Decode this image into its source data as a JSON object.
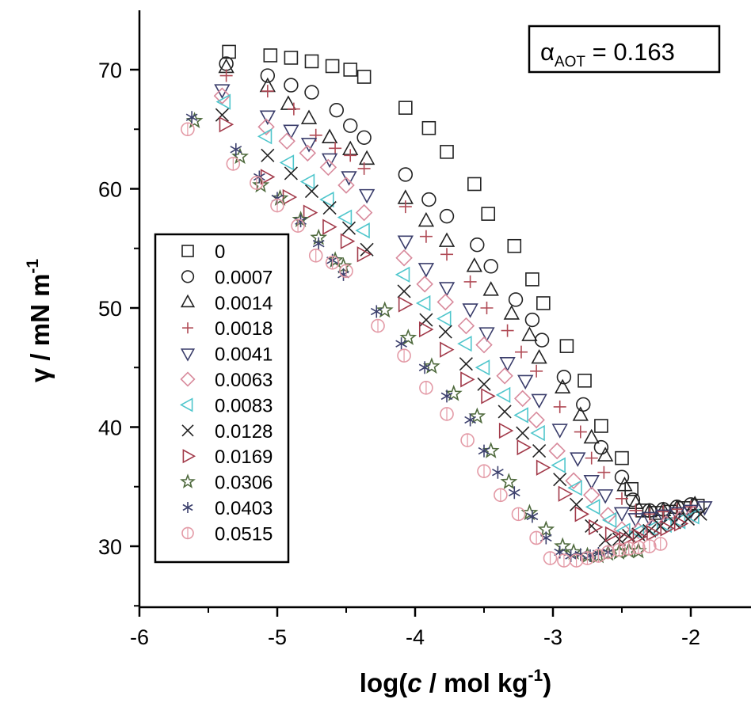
{
  "chart_data": {
    "type": "scatter",
    "xlabel": {
      "pre": "log(",
      "italic": "c",
      "post": " / mol kg",
      "sup": "-1",
      "close": ")"
    },
    "ylabel": {
      "main": "γ / mN m",
      "sup": "-1"
    },
    "xlim": [
      -6,
      -1.85
    ],
    "ylim": [
      25,
      75
    ],
    "xticks": [
      -6,
      -5,
      -4,
      -3,
      -2
    ],
    "xtick_labels": [
      "-6",
      "-5",
      "-4",
      "-3",
      "-2"
    ],
    "yticks": [
      30,
      40,
      50,
      60,
      70
    ],
    "ytick_labels": [
      "30",
      "40",
      "50",
      "60",
      "70"
    ],
    "grid": false,
    "legend_position": "center-left",
    "inset_label": {
      "symbol": "α",
      "sub": "AOT",
      "rest": " = 0.163"
    },
    "series": [
      {
        "name": "0",
        "marker": "square",
        "color": "#222222",
        "x": [
          -5.35,
          -5.05,
          -4.9,
          -4.75,
          -4.6,
          -4.47,
          -4.37,
          -4.07,
          -3.9,
          -3.77,
          -3.57,
          -3.47,
          -3.28,
          -3.15,
          -3.07,
          -2.9,
          -2.77,
          -2.65,
          -2.5,
          -2.43,
          -2.35,
          -2.25,
          -2.15,
          -2.05,
          -1.95
        ],
        "y": [
          71.5,
          71.2,
          71.0,
          70.7,
          70.3,
          70.0,
          69.4,
          66.8,
          65.1,
          63.1,
          60.4,
          57.9,
          55.2,
          52.4,
          50.4,
          46.8,
          43.9,
          40.1,
          37.4,
          34.8,
          33.0,
          32.8,
          32.9,
          33.2,
          33.4
        ]
      },
      {
        "name": "0.0007",
        "marker": "circle",
        "color": "#222222",
        "x": [
          -5.37,
          -5.07,
          -4.9,
          -4.75,
          -4.57,
          -4.47,
          -4.37,
          -4.07,
          -3.9,
          -3.77,
          -3.55,
          -3.45,
          -3.27,
          -3.15,
          -3.08,
          -2.92,
          -2.78,
          -2.65,
          -2.5,
          -2.42,
          -2.3,
          -2.2,
          -2.1,
          -2.0
        ],
        "y": [
          70.5,
          69.5,
          68.7,
          68.1,
          66.6,
          65.3,
          64.3,
          61.2,
          59.1,
          57.7,
          55.3,
          53.5,
          50.7,
          49.0,
          47.3,
          44.2,
          41.9,
          38.3,
          35.8,
          33.9,
          33.0,
          33.1,
          33.3,
          33.5
        ]
      },
      {
        "name": "0.0014",
        "marker": "triangle-up",
        "color": "#222222",
        "x": [
          -5.37,
          -5.07,
          -4.92,
          -4.77,
          -4.62,
          -4.47,
          -4.35,
          -4.07,
          -3.92,
          -3.77,
          -3.57,
          -3.45,
          -3.3,
          -3.17,
          -3.1,
          -2.93,
          -2.8,
          -2.72,
          -2.62,
          -2.48,
          -2.4,
          -2.3,
          -2.2,
          -2.1,
          -1.97
        ],
        "y": [
          70.2,
          68.6,
          67.1,
          65.9,
          64.3,
          63.3,
          62.5,
          59.2,
          57.3,
          55.6,
          53.5,
          51.5,
          49.5,
          47.7,
          45.8,
          43.3,
          41.0,
          39.1,
          37.6,
          35.1,
          33.6,
          32.9,
          33.0,
          33.2,
          33.5
        ]
      },
      {
        "name": "0.0018",
        "marker": "plus",
        "color": "#b04a55",
        "x": [
          -5.37,
          -5.07,
          -4.88,
          -4.72,
          -4.58,
          -4.47,
          -4.37,
          -4.07,
          -3.92,
          -3.77,
          -3.6,
          -3.48,
          -3.33,
          -3.23,
          -3.12,
          -2.95,
          -2.8,
          -2.72,
          -2.63,
          -2.5,
          -2.4,
          -2.3,
          -2.2,
          -2.1,
          -2.0
        ],
        "y": [
          69.5,
          68.2,
          66.7,
          64.5,
          63.4,
          62.8,
          61.7,
          58.5,
          56.0,
          54.5,
          52.2,
          50.0,
          48.1,
          46.3,
          44.7,
          41.7,
          39.6,
          37.4,
          36.2,
          34.0,
          33.0,
          32.7,
          32.9,
          33.1,
          33.3
        ]
      },
      {
        "name": "0.0041",
        "marker": "triangle-down",
        "color": "#3a3d6b",
        "x": [
          -5.4,
          -5.07,
          -4.9,
          -4.77,
          -4.62,
          -4.48,
          -4.35,
          -4.07,
          -3.92,
          -3.77,
          -3.6,
          -3.48,
          -3.33,
          -3.2,
          -3.1,
          -2.95,
          -2.82,
          -2.72,
          -2.62,
          -2.5,
          -2.4,
          -2.3,
          -2.2,
          -2.1,
          -2.0,
          -1.9
        ],
        "y": [
          68.3,
          66.1,
          64.9,
          63.8,
          62.5,
          61.0,
          59.5,
          55.6,
          53.3,
          51.7,
          49.9,
          47.9,
          45.4,
          43.9,
          42.3,
          39.8,
          37.4,
          35.5,
          34.3,
          32.8,
          32.3,
          32.4,
          32.6,
          32.8,
          33.0,
          33.3
        ]
      },
      {
        "name": "0.0063",
        "marker": "diamond",
        "color": "#d88a9c",
        "x": [
          -5.4,
          -5.08,
          -4.93,
          -4.78,
          -4.63,
          -4.5,
          -4.37,
          -4.08,
          -3.93,
          -3.78,
          -3.63,
          -3.5,
          -3.35,
          -3.22,
          -3.12,
          -2.97,
          -2.85,
          -2.72,
          -2.6,
          -2.5,
          -2.38,
          -2.28,
          -2.18,
          -2.08,
          -1.98
        ],
        "y": [
          67.8,
          65.2,
          64.0,
          63.0,
          61.8,
          60.3,
          58.0,
          54.2,
          52.0,
          50.5,
          48.5,
          46.9,
          44.3,
          42.4,
          40.6,
          38.0,
          35.5,
          34.3,
          32.6,
          31.4,
          31.3,
          31.6,
          31.9,
          32.3,
          32.7
        ]
      },
      {
        "name": "0.0083",
        "marker": "triangle-left",
        "color": "#4fc6cc",
        "x": [
          -5.38,
          -5.08,
          -4.92,
          -4.77,
          -4.63,
          -4.5,
          -4.37,
          -4.08,
          -3.93,
          -3.78,
          -3.63,
          -3.5,
          -3.35,
          -3.22,
          -3.1,
          -2.95,
          -2.83,
          -2.7,
          -2.58,
          -2.48,
          -2.38,
          -2.28,
          -2.18,
          -2.08,
          -1.98
        ],
        "y": [
          67.3,
          64.4,
          62.2,
          60.6,
          59.1,
          57.6,
          56.5,
          52.8,
          50.4,
          49.1,
          47.0,
          45.0,
          42.7,
          41.0,
          39.5,
          36.8,
          34.9,
          33.3,
          32.2,
          31.3,
          31.2,
          31.5,
          31.8,
          32.1,
          32.5
        ]
      },
      {
        "name": "0.0128",
        "marker": "x",
        "color": "#222222",
        "x": [
          -5.4,
          -5.07,
          -4.9,
          -4.75,
          -4.62,
          -4.48,
          -4.35,
          -4.08,
          -3.92,
          -3.78,
          -3.63,
          -3.5,
          -3.35,
          -3.22,
          -3.1,
          -2.95,
          -2.83,
          -2.72,
          -2.62,
          -2.52,
          -2.45,
          -2.38,
          -2.3,
          -2.22,
          -2.12,
          -2.02,
          -1.93
        ],
        "y": [
          66.2,
          62.8,
          61.3,
          59.8,
          58.4,
          56.7,
          54.9,
          51.4,
          49.0,
          48.0,
          45.3,
          43.6,
          41.3,
          39.5,
          38.0,
          35.6,
          33.5,
          31.7,
          30.5,
          30.6,
          30.9,
          31.0,
          31.3,
          31.7,
          32.0,
          32.3,
          32.7
        ]
      },
      {
        "name": "0.0169",
        "marker": "triangle-right",
        "color": "#a23a4a",
        "x": [
          -5.38,
          -5.08,
          -4.92,
          -4.77,
          -4.63,
          -4.5,
          -4.38,
          -4.08,
          -3.93,
          -3.78,
          -3.63,
          -3.48,
          -3.35,
          -3.22,
          -3.08,
          -2.92,
          -2.8,
          -2.7,
          -2.58,
          -2.48,
          -2.38,
          -2.28,
          -2.18,
          -2.08
        ],
        "y": [
          65.4,
          61.0,
          59.3,
          58.0,
          56.8,
          55.6,
          54.5,
          50.3,
          48.2,
          46.5,
          44.0,
          42.6,
          39.7,
          38.3,
          36.6,
          34.4,
          32.7,
          31.6,
          31.0,
          30.6,
          30.8,
          31.1,
          31.5,
          31.9
        ]
      },
      {
        "name": "0.0306",
        "marker": "star",
        "color": "#4f6a3d",
        "x": [
          -5.6,
          -5.27,
          -5.12,
          -4.98,
          -4.83,
          -4.7,
          -4.58,
          -4.52,
          -4.22,
          -4.05,
          -3.88,
          -3.72,
          -3.55,
          -3.45,
          -3.32,
          -3.17,
          -3.05,
          -2.93,
          -2.85,
          -2.75,
          -2.67,
          -2.6,
          -2.52,
          -2.45,
          -2.38
        ],
        "y": [
          65.7,
          62.7,
          60.3,
          59.2,
          57.4,
          55.9,
          54.0,
          53.5,
          49.8,
          47.5,
          45.1,
          42.8,
          40.9,
          38.0,
          35.4,
          32.8,
          31.4,
          30.0,
          29.5,
          29.2,
          29.2,
          29.4,
          29.5,
          29.6,
          29.6
        ]
      },
      {
        "name": "0.0403",
        "marker": "asterisk",
        "color": "#3d416e",
        "x": [
          -5.62,
          -5.3,
          -5.13,
          -5.0,
          -4.83,
          -4.7,
          -4.6,
          -4.52,
          -4.28,
          -4.1,
          -3.93,
          -3.77,
          -3.6,
          -3.5,
          -3.4,
          -3.28,
          -3.15,
          -3.05,
          -2.95,
          -2.87,
          -2.8,
          -2.73,
          -2.67,
          -2.6
        ],
        "y": [
          66.0,
          63.3,
          61.0,
          59.2,
          57.3,
          55.4,
          54.0,
          52.8,
          49.7,
          47.0,
          45.0,
          42.6,
          40.6,
          38.0,
          36.2,
          34.5,
          32.5,
          30.7,
          29.5,
          29.2,
          29.3,
          29.2,
          29.4,
          29.5
        ]
      },
      {
        "name": "0.0515",
        "marker": "circle-bar",
        "color": "#e39aa6",
        "x": [
          -5.65,
          -5.32,
          -5.15,
          -5.0,
          -4.85,
          -4.72,
          -4.6,
          -4.5,
          -4.27,
          -4.08,
          -3.92,
          -3.77,
          -3.62,
          -3.5,
          -3.38,
          -3.25,
          -3.12,
          -3.02,
          -2.92,
          -2.83,
          -2.75,
          -2.67,
          -2.6,
          -2.52,
          -2.45,
          -2.38,
          -2.3,
          -2.22
        ],
        "y": [
          65.0,
          62.1,
          60.5,
          58.6,
          56.9,
          54.4,
          53.8,
          53.1,
          48.5,
          46.0,
          43.3,
          41.1,
          38.9,
          36.3,
          34.3,
          32.7,
          30.7,
          29.0,
          28.8,
          28.8,
          29.0,
          29.2,
          29.5,
          29.7,
          29.8,
          29.9,
          30.0,
          30.2
        ]
      }
    ]
  }
}
